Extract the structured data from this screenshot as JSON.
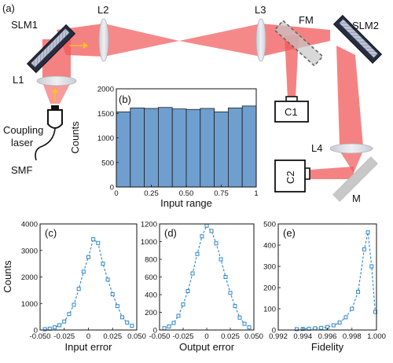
{
  "setup": {
    "panel_label": "(a)",
    "labels": {
      "slm1": "SLM1",
      "l1": "L1",
      "l2": "L2",
      "l3": "L3",
      "fm": "FM",
      "slm2": "SLM2",
      "c1": "C1",
      "c2": "C2",
      "l4": "L4",
      "m": "M",
      "laser_line1": "Coupling",
      "laser_line2": "laser",
      "smf": "SMF"
    },
    "colors": {
      "beam": "#ef3b3b",
      "bar": "#6f9fcf",
      "curve": "#2f86c8",
      "arrow": "#f5c518"
    }
  },
  "chart_data": [
    {
      "type": "bar",
      "panel": "(b)",
      "xlabel": "Input range",
      "ylabel": "Counts",
      "xlim": [
        0,
        1
      ],
      "ylim": [
        0,
        2000
      ],
      "xticks": [
        "0",
        "0.25",
        "0.50",
        "0.75",
        "1"
      ],
      "yticks": [
        "0",
        "500",
        "1000",
        "1500",
        "2000"
      ],
      "bin_edges": [
        0,
        0.1,
        0.2,
        0.3,
        0.4,
        0.5,
        0.6,
        0.7,
        0.8,
        0.9,
        1.0
      ],
      "values": [
        1530,
        1610,
        1600,
        1620,
        1590,
        1580,
        1600,
        1530,
        1610,
        1650
      ]
    },
    {
      "type": "line",
      "panel": "(c)",
      "xlabel": "Input error",
      "ylabel": "Counts",
      "xlim": [
        -0.05,
        0.05
      ],
      "ylim": [
        0,
        4000
      ],
      "xticks": [
        "-0.050",
        "-0.025",
        "0",
        "0.025",
        "0.050"
      ],
      "yticks": [
        "0",
        "1000",
        "2000",
        "3000",
        "4000"
      ],
      "x": [
        -0.045,
        -0.04,
        -0.035,
        -0.03,
        -0.025,
        -0.02,
        -0.015,
        -0.01,
        -0.005,
        0.0,
        0.005,
        0.01,
        0.015,
        0.02,
        0.025,
        0.03,
        0.035,
        0.04,
        0.045
      ],
      "y": [
        30,
        50,
        100,
        180,
        320,
        600,
        950,
        1550,
        2200,
        2750,
        3420,
        3280,
        2500,
        1900,
        1350,
        900,
        480,
        280,
        160
      ]
    },
    {
      "type": "line",
      "panel": "(d)",
      "xlabel": "Output error",
      "ylabel": "",
      "xlim": [
        -0.05,
        0.05
      ],
      "ylim": [
        0,
        1200
      ],
      "xticks": [
        "-0.050",
        "-0.025",
        "0",
        "0.025",
        "0.050"
      ],
      "yticks": [
        "0",
        "200",
        "400",
        "600",
        "800",
        "1000",
        "1200"
      ],
      "x": [
        -0.045,
        -0.04,
        -0.035,
        -0.03,
        -0.025,
        -0.02,
        -0.015,
        -0.01,
        -0.005,
        0.0,
        0.005,
        0.01,
        0.015,
        0.02,
        0.025,
        0.03,
        0.035,
        0.04,
        0.045
      ],
      "y": [
        20,
        40,
        80,
        160,
        290,
        440,
        640,
        860,
        1060,
        1180,
        1120,
        980,
        800,
        600,
        420,
        270,
        140,
        70,
        30
      ]
    },
    {
      "type": "line",
      "panel": "(e)",
      "xlabel": "Fidelity",
      "ylabel": "",
      "xlim": [
        0.992,
        1.0
      ],
      "ylim": [
        0,
        500
      ],
      "xticks": [
        "0.992",
        "0.994",
        "0.996",
        "0.998",
        "1.000"
      ],
      "yticks": [
        "0",
        "100",
        "200",
        "300",
        "400",
        "500"
      ],
      "x": [
        0.9935,
        0.994,
        0.9945,
        0.995,
        0.9955,
        0.996,
        0.9965,
        0.997,
        0.9975,
        0.998,
        0.9985,
        0.999,
        0.9993,
        0.9996,
        0.9999
      ],
      "y": [
        4,
        5,
        6,
        8,
        10,
        14,
        22,
        35,
        60,
        100,
        180,
        380,
        460,
        300,
        85
      ]
    }
  ]
}
